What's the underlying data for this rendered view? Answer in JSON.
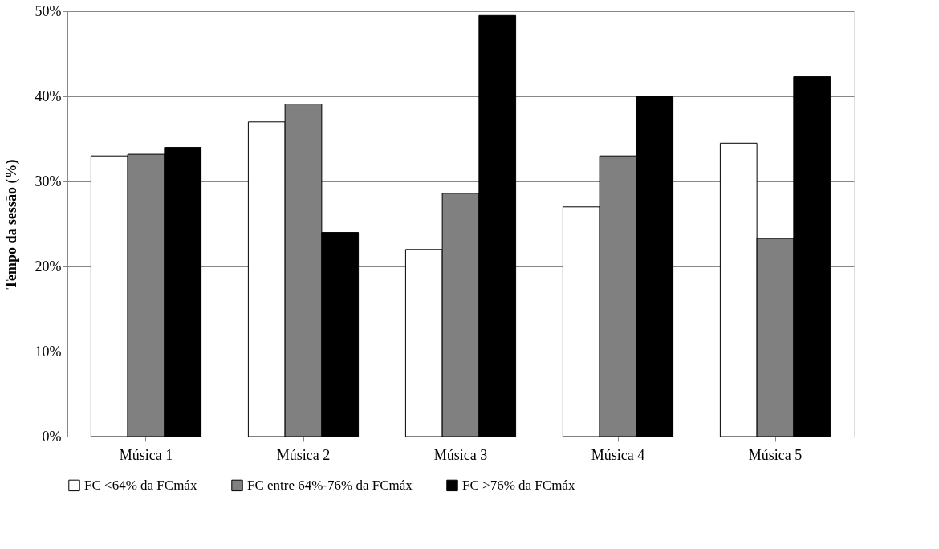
{
  "chart_data": {
    "type": "bar",
    "ylabel": "Tempo da sessão (%)",
    "categories": [
      "Música 1",
      "Música 2",
      "Música 3",
      "Música 4",
      "Música 5"
    ],
    "series": [
      {
        "name": "FC <64% da FCmáx",
        "color": "#ffffff",
        "values": [
          33.0,
          37.0,
          22.0,
          27.0,
          34.5
        ]
      },
      {
        "name": "FC entre 64%-76% da FCmáx",
        "color": "#808080",
        "values": [
          33.2,
          39.1,
          28.6,
          33.0,
          23.3
        ]
      },
      {
        "name": "FC >76% da FCmáx",
        "color": "#000000",
        "values": [
          34.0,
          24.0,
          49.5,
          40.0,
          42.3
        ]
      }
    ],
    "ylim": [
      0,
      50
    ],
    "yticks": [
      {
        "value": 0,
        "label": "0%"
      },
      {
        "value": 10,
        "label": "10%"
      },
      {
        "value": 20,
        "label": "20%"
      },
      {
        "value": 30,
        "label": "30%"
      },
      {
        "value": 40,
        "label": "40%"
      },
      {
        "value": 50,
        "label": "50%"
      }
    ],
    "grid": "y",
    "legend": "bottom"
  }
}
